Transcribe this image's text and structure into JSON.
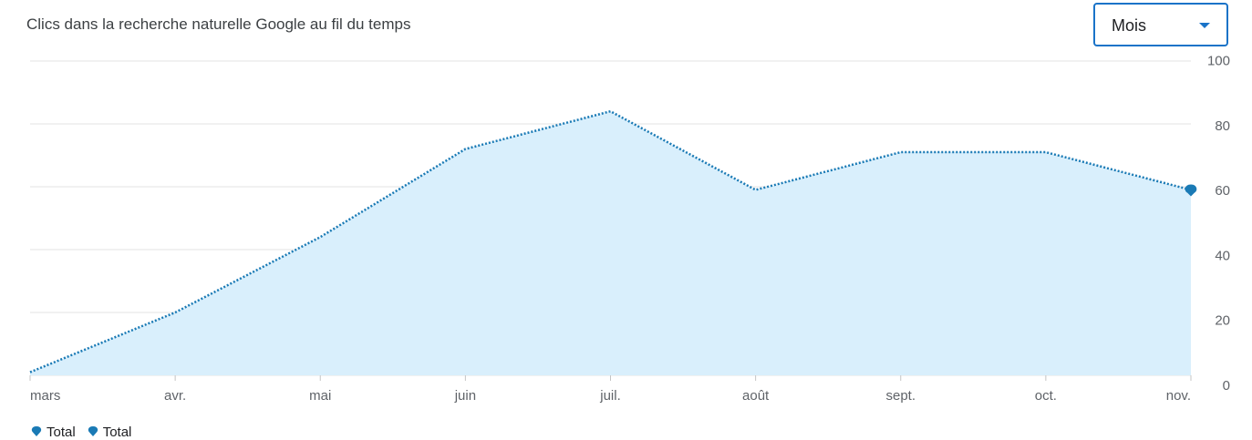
{
  "header": {
    "title": "Clics dans la recherche naturelle Google au fil du temps"
  },
  "period_select": {
    "value": "Mois",
    "icon": "chevron-down-icon"
  },
  "legend": [
    {
      "label": "Total",
      "icon": "legend-marker-icon"
    },
    {
      "label": "Total",
      "icon": "legend-marker-icon"
    }
  ],
  "colors": {
    "line": "#1a7ab5",
    "area": "#d9effc",
    "grid": "#e3e3e3",
    "accent": "#1a73c8"
  },
  "chart_data": {
    "type": "area",
    "title": "Clics dans la recherche naturelle Google au fil du temps",
    "categories": [
      "mars",
      "avr.",
      "mai",
      "juin",
      "juil.",
      "août",
      "sept.",
      "oct.",
      "nov."
    ],
    "series": [
      {
        "name": "Total",
        "values": [
          1,
          20,
          44,
          72,
          84,
          59,
          71,
          71,
          59
        ]
      }
    ],
    "ylim": [
      0,
      100
    ],
    "yticks": [
      0,
      20,
      40,
      60,
      80,
      100
    ],
    "grid": true,
    "y_axis_position": "right",
    "legend_position": "bottom-left"
  }
}
